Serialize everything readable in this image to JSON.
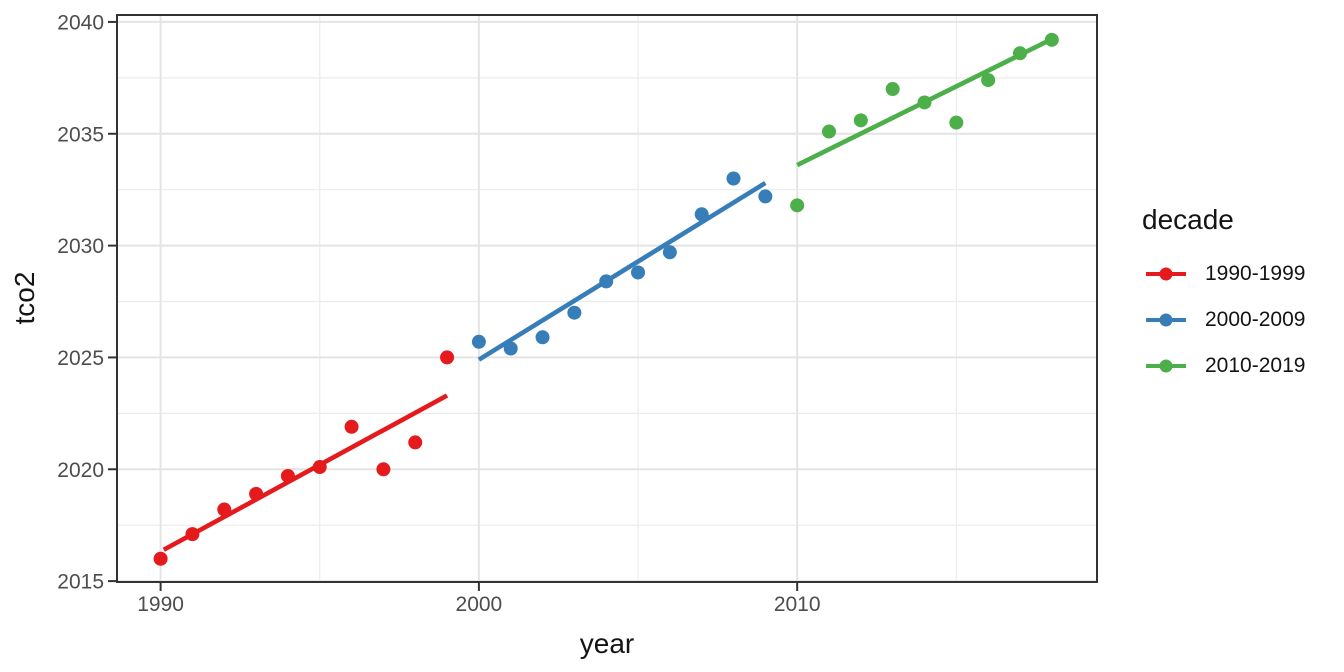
{
  "chart_data": {
    "type": "scatter",
    "title": "",
    "xlabel": "year",
    "ylabel": "tco2",
    "x_domain": [
      1988.63,
      2019.42
    ],
    "y_domain": [
      2014.96,
      2040.31
    ],
    "x_ticks": [
      1990,
      2000,
      2010
    ],
    "x_minor_ticks": [
      1995,
      2005,
      2015
    ],
    "y_ticks": [
      2015,
      2020,
      2025,
      2030,
      2035,
      2040
    ],
    "y_minor_ticks": [
      2017.5,
      2022.5,
      2027.5,
      2032.5,
      2037.5
    ],
    "grid": true,
    "legend": {
      "title": "decade",
      "position": "right"
    },
    "series": [
      {
        "name": "1990-1999",
        "color": "#E41A1C",
        "x": [
          1990,
          1991,
          1992,
          1993,
          1994,
          1995,
          1996,
          1997,
          1998,
          1999
        ],
        "y": [
          2016.0,
          2017.1,
          2018.2,
          2018.9,
          2019.7,
          2020.1,
          2021.9,
          2020.0,
          2021.2,
          2025.0
        ],
        "trend": {
          "x1": 1990.1,
          "y1": 2016.4,
          "x2": 1999.0,
          "y2": 2023.3
        }
      },
      {
        "name": "2000-2009",
        "color": "#377EB8",
        "x": [
          2000,
          2001,
          2002,
          2003,
          2004,
          2005,
          2006,
          2007,
          2008,
          2009
        ],
        "y": [
          2025.7,
          2025.4,
          2025.9,
          2027.0,
          2028.4,
          2028.8,
          2029.7,
          2031.4,
          2033.0,
          2032.2
        ],
        "trend": {
          "x1": 2000.0,
          "y1": 2024.9,
          "x2": 2009.0,
          "y2": 2032.8
        }
      },
      {
        "name": "2010-2019",
        "color": "#4DAF4A",
        "x": [
          2010,
          2011,
          2012,
          2013,
          2014,
          2015,
          2016,
          2017,
          2018
        ],
        "y": [
          2031.8,
          2035.1,
          2035.6,
          2037.0,
          2036.4,
          2035.5,
          2037.4,
          2038.6,
          2039.2
        ],
        "trend": {
          "x1": 2010.0,
          "y1": 2033.6,
          "x2": 2018.1,
          "y2": 2039.3
        }
      }
    ]
  },
  "style": {
    "panel_border_color": "#333333",
    "tick_color": "#333333",
    "tick_label_color": "#4d4d4d",
    "grid_major_color": "#e4e4e4",
    "grid_minor_color": "#ececec",
    "background": "#ffffff"
  }
}
